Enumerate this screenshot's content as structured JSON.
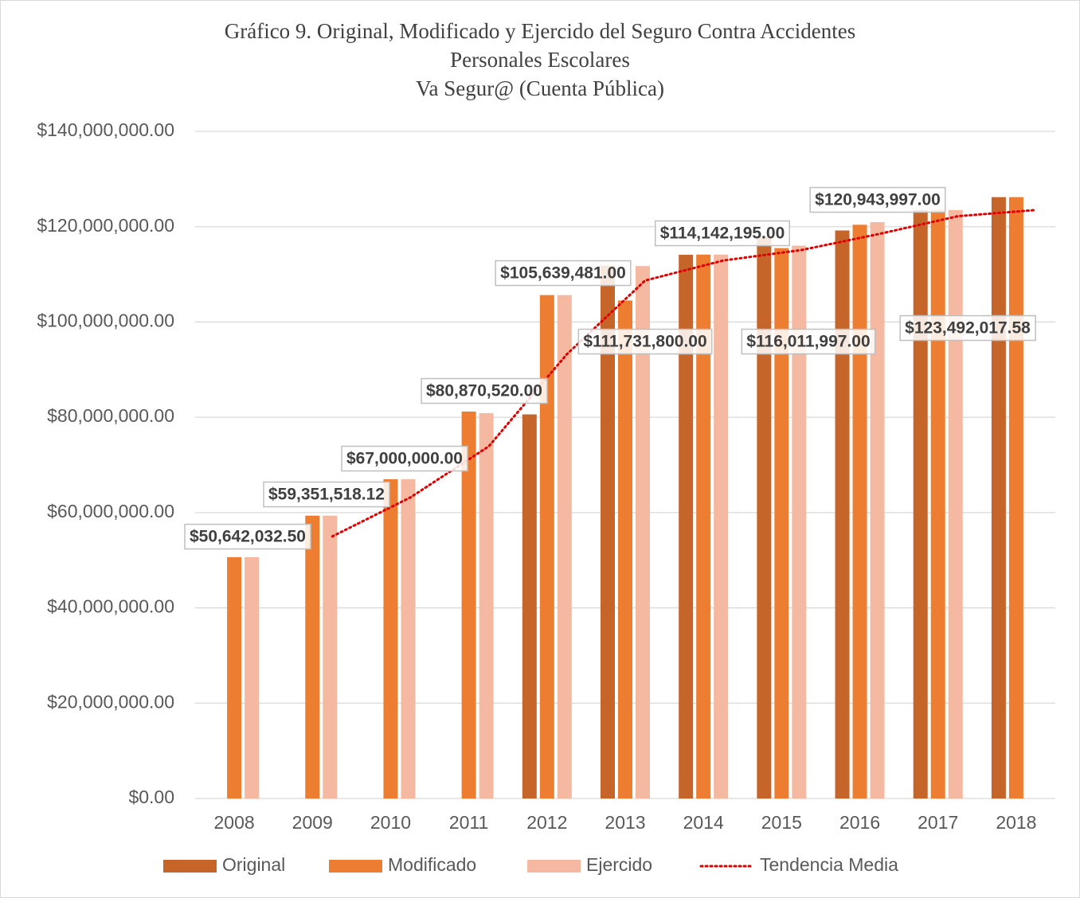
{
  "chart_data": {
    "type": "bar",
    "title": [
      "Gráfico 9.  Original, Modificado y Ejercido del Seguro Contra Accidentes",
      "Personales Escolares",
      "Va Segur@ (Cuenta Pública)"
    ],
    "categories": [
      "2008",
      "2009",
      "2010",
      "2011",
      "2012",
      "2013",
      "2014",
      "2015",
      "2016",
      "2017",
      "2018"
    ],
    "series": [
      {
        "name": "Original",
        "color": "#c5652a",
        "values": [
          null,
          null,
          null,
          null,
          80600000,
          111800000,
          114100000,
          118000000,
          119200000,
          123500000,
          126200000
        ]
      },
      {
        "name": "Modificado",
        "color": "#ed7d31",
        "values": [
          50642032.5,
          59351518.12,
          67000000,
          81200000,
          105639481,
          104500000,
          114142195,
          115500000,
          120400000,
          123500000,
          126200000
        ]
      },
      {
        "name": "Ejercido",
        "color": "#f4b9a0",
        "values": [
          50642032.5,
          59351518.12,
          67000000,
          80870520,
          105639481,
          111731800,
          114142195,
          116011997,
          120943997,
          123492017.58,
          null
        ],
        "value_labels": [
          "$50,642,032.50",
          "$59,351,518.12",
          "$67,000,000.00",
          "$80,870,520.00",
          "$105,639,481.00",
          "$111,731,800.00",
          "$114,142,195.00",
          "$116,011,997.00",
          "$120,943,997.00",
          "$123,492,017.58",
          null
        ]
      },
      {
        "name": "Tendencia Media",
        "type": "line",
        "color": "#e00000",
        "values": [
          null,
          55000000,
          63200000,
          73900000,
          93250000,
          108700000,
          112900000,
          115100000,
          118500000,
          122200000,
          123500000
        ]
      }
    ],
    "ylim": [
      0,
      140000000
    ],
    "yticks": [
      {
        "value": 0,
        "label": "$0.00"
      },
      {
        "value": 20000000,
        "label": "$20,000,000.00"
      },
      {
        "value": 40000000,
        "label": "$40,000,000.00"
      },
      {
        "value": 60000000,
        "label": "$60,000,000.00"
      },
      {
        "value": 80000000,
        "label": "$80,000,000.00"
      },
      {
        "value": 100000000,
        "label": "$100,000,000.00"
      },
      {
        "value": 120000000,
        "label": "$120,000,000.00"
      },
      {
        "value": 140000000,
        "label": "$140,000,000.00"
      }
    ],
    "grid": true,
    "legend": "bottom"
  }
}
